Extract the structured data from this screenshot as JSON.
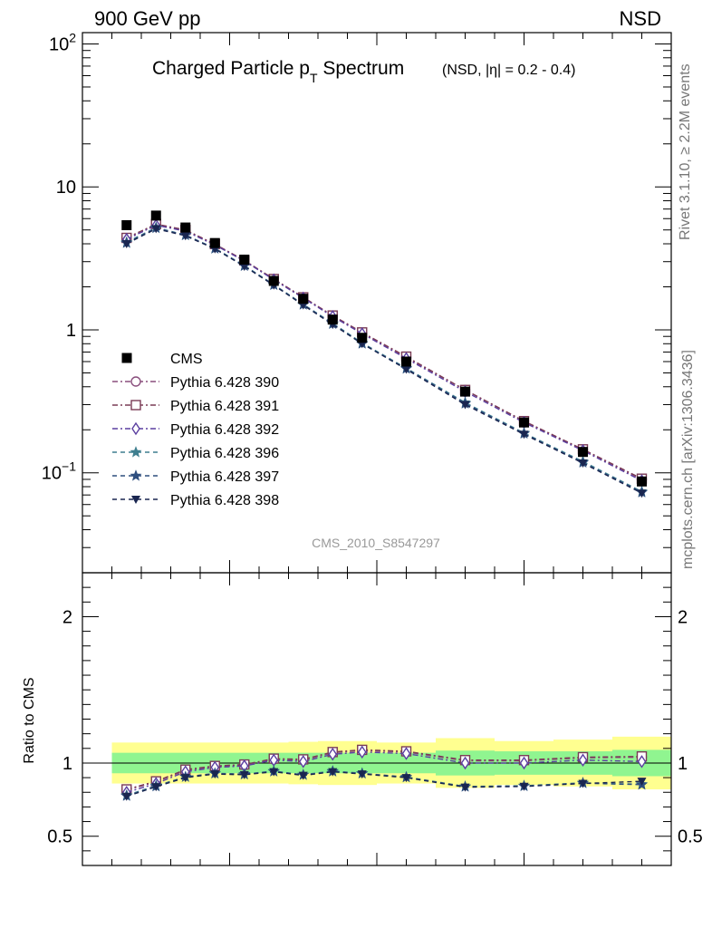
{
  "header": {
    "left_label": "900 GeV pp",
    "right_label": "NSD",
    "side_label_top": "Rivet 3.1.10, ≥ 2.2M events",
    "side_label_bottom": "mcplots.cern.ch [arXiv:1306.3436]"
  },
  "chart_data": [
    {
      "type": "line",
      "title": "Charged Particle p_T Spectrum",
      "title_main_a": "Charged Particle p",
      "title_sub": "T",
      "title_main_b": " Spectrum",
      "title_extra": "(NSD, |η| = 0.2 - 0.4)",
      "watermark": "CMS_2010_S8547297",
      "yscale": "log",
      "xlim": [
        0,
        2
      ],
      "ylim": [
        0.02,
        120
      ],
      "y_ticks": [
        {
          "v": 100,
          "base": "10",
          "exp": "2"
        },
        {
          "v": 10,
          "base": "10",
          "exp": ""
        },
        {
          "v": 1,
          "base": "1",
          "exp": ""
        },
        {
          "v": 0.1,
          "base": "10",
          "exp": "−1"
        }
      ],
      "legend_position": "middle-left",
      "x": [
        0.15,
        0.25,
        0.35,
        0.45,
        0.55,
        0.65,
        0.75,
        0.85,
        0.95,
        1.1,
        1.3,
        1.5,
        1.7,
        1.9
      ],
      "data": {
        "name": "CMS",
        "values": [
          5.4,
          6.3,
          5.2,
          4.05,
          3.1,
          2.2,
          1.65,
          1.18,
          0.88,
          0.6,
          0.37,
          0.225,
          0.14,
          0.087
        ]
      },
      "series": [
        {
          "name": "Pythia 6.428 390",
          "marker": "circle",
          "color": "#8a4f7d",
          "dash": "6,3,2,3",
          "values": [
            4.35,
            5.45,
            4.95,
            3.95,
            3.05,
            2.25,
            1.68,
            1.25,
            0.95,
            0.64,
            0.38,
            0.23,
            0.145,
            0.09
          ]
        },
        {
          "name": "Pythia 6.428 391",
          "marker": "square",
          "color": "#7a3b55",
          "dash": "6,3,2,3",
          "values": [
            4.4,
            5.5,
            5.0,
            3.98,
            3.06,
            2.27,
            1.69,
            1.26,
            0.96,
            0.65,
            0.38,
            0.23,
            0.146,
            0.091
          ]
        },
        {
          "name": "Pythia 6.428 392",
          "marker": "diamond",
          "color": "#5b3fa0",
          "dash": "6,3,2,3",
          "values": [
            4.3,
            5.4,
            4.9,
            3.92,
            3.03,
            2.24,
            1.67,
            1.24,
            0.94,
            0.63,
            0.37,
            0.225,
            0.143,
            0.088
          ]
        },
        {
          "name": "Pythia 6.428 396",
          "marker": "star",
          "color": "#3f7f8f",
          "dash": "5,4",
          "values": [
            4.1,
            5.2,
            4.6,
            3.72,
            2.82,
            2.07,
            1.51,
            1.11,
            0.81,
            0.54,
            0.31,
            0.19,
            0.12,
            0.074
          ]
        },
        {
          "name": "Pythia 6.428 397",
          "marker": "star",
          "color": "#2f4f7f",
          "dash": "5,4",
          "values": [
            4.05,
            5.15,
            4.6,
            3.7,
            2.8,
            2.06,
            1.5,
            1.1,
            0.8,
            0.535,
            0.305,
            0.188,
            0.118,
            0.073
          ]
        },
        {
          "name": "Pythia 6.428 398",
          "marker": "triangle-down",
          "color": "#1a2650",
          "dash": "5,4",
          "values": [
            4.0,
            5.1,
            4.55,
            3.68,
            2.78,
            2.05,
            1.49,
            1.09,
            0.8,
            0.53,
            0.3,
            0.186,
            0.117,
            0.072
          ]
        }
      ]
    },
    {
      "type": "line",
      "ylabel": "Ratio to CMS",
      "xlim": [
        0,
        2
      ],
      "ylim": [
        0.3,
        2.3
      ],
      "x_ticks": [
        "0",
        "0.5",
        "1",
        "1.5",
        "2"
      ],
      "y_ticks": [
        "0.5",
        "1",
        "2"
      ],
      "band_colors": {
        "inner": "#90f590",
        "outer": "#ffff90"
      },
      "bands": [
        {
          "x0": 0.1,
          "x1": 0.2,
          "inner": [
            0.93,
            1.07
          ],
          "outer": [
            0.86,
            1.14
          ]
        },
        {
          "x0": 0.2,
          "x1": 0.3,
          "inner": [
            0.93,
            1.07
          ],
          "outer": [
            0.86,
            1.14
          ]
        },
        {
          "x0": 0.3,
          "x1": 0.4,
          "inner": [
            0.93,
            1.07
          ],
          "outer": [
            0.86,
            1.14
          ]
        },
        {
          "x0": 0.4,
          "x1": 0.5,
          "inner": [
            0.93,
            1.07
          ],
          "outer": [
            0.86,
            1.14
          ]
        },
        {
          "x0": 0.5,
          "x1": 0.6,
          "inner": [
            0.93,
            1.07
          ],
          "outer": [
            0.86,
            1.14
          ]
        },
        {
          "x0": 0.6,
          "x1": 0.7,
          "inner": [
            0.93,
            1.07
          ],
          "outer": [
            0.86,
            1.14
          ]
        },
        {
          "x0": 0.7,
          "x1": 0.8,
          "inner": [
            0.93,
            1.07
          ],
          "outer": [
            0.855,
            1.145
          ]
        },
        {
          "x0": 0.8,
          "x1": 0.9,
          "inner": [
            0.93,
            1.07
          ],
          "outer": [
            0.85,
            1.15
          ]
        },
        {
          "x0": 0.9,
          "x1": 1.0,
          "inner": [
            0.93,
            1.07
          ],
          "outer": [
            0.85,
            1.15
          ]
        },
        {
          "x0": 1.0,
          "x1": 1.2,
          "inner": [
            0.93,
            1.07
          ],
          "outer": [
            0.86,
            1.14
          ]
        },
        {
          "x0": 1.2,
          "x1": 1.4,
          "inner": [
            0.915,
            1.085
          ],
          "outer": [
            0.83,
            1.17
          ]
        },
        {
          "x0": 1.4,
          "x1": 1.6,
          "inner": [
            0.92,
            1.08
          ],
          "outer": [
            0.85,
            1.15
          ]
        },
        {
          "x0": 1.6,
          "x1": 1.8,
          "inner": [
            0.92,
            1.08
          ],
          "outer": [
            0.84,
            1.16
          ]
        },
        {
          "x0": 1.8,
          "x1": 2.0,
          "inner": [
            0.91,
            1.09
          ],
          "outer": [
            0.82,
            1.18
          ]
        }
      ],
      "ratio_series": [
        {
          "name": "Pythia 6.428 390",
          "values": [
            0.815,
            0.87,
            0.95,
            0.975,
            0.985,
            1.025,
            1.02,
            1.07,
            1.085,
            1.075,
            1.015,
            1.015,
            1.035,
            1.04
          ]
        },
        {
          "name": "Pythia 6.428 391",
          "values": [
            0.82,
            0.875,
            0.955,
            0.98,
            0.99,
            1.03,
            1.025,
            1.075,
            1.09,
            1.08,
            1.02,
            1.02,
            1.04,
            1.045
          ]
        },
        {
          "name": "Pythia 6.428 392",
          "values": [
            0.8,
            0.86,
            0.94,
            0.97,
            0.98,
            1.02,
            1.01,
            1.06,
            1.075,
            1.065,
            1.0,
            1.0,
            1.02,
            1.01
          ]
        },
        {
          "name": "Pythia 6.428 396",
          "values": [
            0.78,
            0.845,
            0.905,
            0.93,
            0.925,
            0.945,
            0.92,
            0.945,
            0.93,
            0.905,
            0.84,
            0.845,
            0.865,
            0.855
          ]
        },
        {
          "name": "Pythia 6.428 397",
          "values": [
            0.775,
            0.84,
            0.905,
            0.928,
            0.922,
            0.942,
            0.918,
            0.942,
            0.928,
            0.902,
            0.838,
            0.842,
            0.862,
            0.852
          ]
        },
        {
          "name": "Pythia 6.428 398",
          "values": [
            0.772,
            0.838,
            0.9,
            0.925,
            0.92,
            0.94,
            0.915,
            0.94,
            0.925,
            0.9,
            0.835,
            0.84,
            0.86,
            0.875
          ]
        }
      ]
    }
  ]
}
